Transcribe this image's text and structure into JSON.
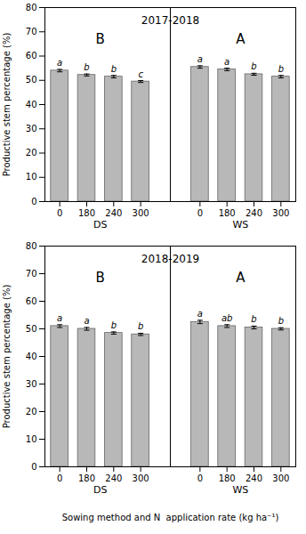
{
  "chart_data": [
    {
      "type": "bar",
      "title": "2017-2018",
      "categories": [
        "0",
        "180",
        "240",
        "300",
        "0",
        "180",
        "240",
        "300"
      ],
      "values": [
        54.0,
        52.2,
        51.5,
        49.5,
        55.5,
        54.5,
        52.5,
        51.5
      ],
      "errors": [
        0.5,
        0.4,
        0.5,
        0.4,
        0.5,
        0.5,
        0.4,
        0.5
      ],
      "significance_labels": [
        "a",
        "b",
        "b",
        "c",
        "a",
        "a",
        "b",
        "b"
      ],
      "groups": [
        "DS",
        "WS"
      ],
      "group_letters": [
        "B",
        "A"
      ],
      "ylabel": "Productive stem percentage (%)",
      "ylim": [
        0,
        80
      ],
      "yticks": [
        0,
        10,
        20,
        30,
        40,
        50,
        60,
        70,
        80
      ],
      "color": "#b8b8b8",
      "grid": false
    },
    {
      "type": "bar",
      "title": "2018-2019",
      "categories": [
        "0",
        "180",
        "240",
        "300",
        "0",
        "180",
        "240",
        "300"
      ],
      "values": [
        51.0,
        50.0,
        48.5,
        48.0,
        52.5,
        51.0,
        50.5,
        50.0
      ],
      "errors": [
        0.5,
        0.5,
        0.4,
        0.4,
        0.6,
        0.5,
        0.5,
        0.4
      ],
      "significance_labels": [
        "a",
        "a",
        "b",
        "b",
        "a",
        "ab",
        "b",
        "b"
      ],
      "groups": [
        "DS",
        "WS"
      ],
      "group_letters": [
        "B",
        "A"
      ],
      "ylabel": "Productive stem percentage (%)",
      "xlabel": "Sowing method and N  application rate (kg ha⁻¹)",
      "ylim": [
        0,
        80
      ],
      "yticks": [
        0,
        10,
        20,
        30,
        40,
        50,
        60,
        70,
        80
      ],
      "color": "#b8b8b8",
      "grid": false
    }
  ]
}
